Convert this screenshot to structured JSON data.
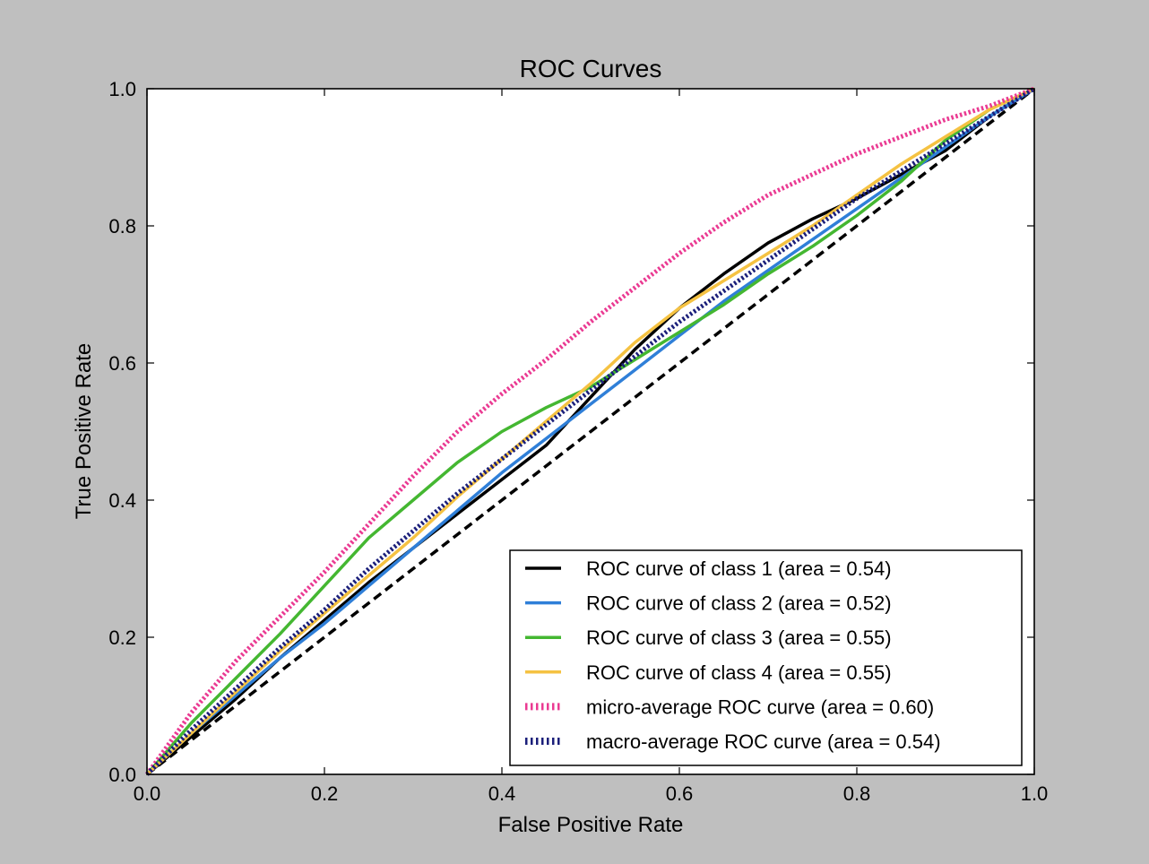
{
  "chart_data": {
    "type": "line",
    "title": "ROC Curves",
    "xlabel": "False Positive Rate",
    "ylabel": "True Positive Rate",
    "xlim": [
      0.0,
      1.0
    ],
    "ylim": [
      0.0,
      1.0
    ],
    "xticks": [
      "0.0",
      "0.2",
      "0.4",
      "0.6",
      "0.8",
      "1.0"
    ],
    "yticks": [
      "0.0",
      "0.2",
      "0.4",
      "0.6",
      "0.8",
      "1.0"
    ],
    "grid": false,
    "legend_position": "lower-right",
    "series": [
      {
        "name": "ROC curve of class 1 (area = 0.54)",
        "color": "#000000",
        "style": "solid",
        "x": [
          0.0,
          0.05,
          0.1,
          0.15,
          0.2,
          0.25,
          0.3,
          0.35,
          0.4,
          0.45,
          0.5,
          0.55,
          0.6,
          0.65,
          0.7,
          0.75,
          0.8,
          0.85,
          0.9,
          0.95,
          1.0
        ],
        "y": [
          0.0,
          0.055,
          0.11,
          0.17,
          0.225,
          0.28,
          0.33,
          0.38,
          0.43,
          0.48,
          0.55,
          0.62,
          0.68,
          0.73,
          0.775,
          0.81,
          0.84,
          0.875,
          0.91,
          0.96,
          1.0
        ]
      },
      {
        "name": "ROC curve of class 2 (area = 0.52)",
        "color": "#2f7fd8",
        "style": "solid",
        "x": [
          0.0,
          0.05,
          0.1,
          0.15,
          0.2,
          0.25,
          0.3,
          0.35,
          0.4,
          0.45,
          0.5,
          0.55,
          0.6,
          0.65,
          0.7,
          0.75,
          0.8,
          0.85,
          0.9,
          0.95,
          1.0
        ],
        "y": [
          0.0,
          0.06,
          0.115,
          0.17,
          0.22,
          0.275,
          0.33,
          0.385,
          0.44,
          0.49,
          0.54,
          0.59,
          0.64,
          0.69,
          0.735,
          0.78,
          0.825,
          0.87,
          0.915,
          0.96,
          1.0
        ]
      },
      {
        "name": "ROC curve of class 3 (area = 0.55)",
        "color": "#44b731",
        "style": "solid",
        "x": [
          0.0,
          0.05,
          0.1,
          0.15,
          0.2,
          0.25,
          0.3,
          0.35,
          0.4,
          0.45,
          0.5,
          0.55,
          0.6,
          0.65,
          0.7,
          0.75,
          0.8,
          0.85,
          0.9,
          0.95,
          1.0
        ],
        "y": [
          0.0,
          0.075,
          0.14,
          0.205,
          0.275,
          0.345,
          0.4,
          0.455,
          0.5,
          0.535,
          0.565,
          0.605,
          0.645,
          0.685,
          0.73,
          0.77,
          0.815,
          0.865,
          0.925,
          0.97,
          1.0
        ]
      },
      {
        "name": "ROC curve of class 4 (area = 0.55)",
        "color": "#f5c242",
        "style": "solid",
        "x": [
          0.0,
          0.05,
          0.1,
          0.15,
          0.2,
          0.25,
          0.3,
          0.35,
          0.4,
          0.45,
          0.5,
          0.55,
          0.6,
          0.65,
          0.7,
          0.75,
          0.8,
          0.85,
          0.9,
          0.95,
          1.0
        ],
        "y": [
          0.0,
          0.06,
          0.12,
          0.18,
          0.235,
          0.29,
          0.345,
          0.405,
          0.46,
          0.515,
          0.57,
          0.63,
          0.68,
          0.72,
          0.76,
          0.8,
          0.845,
          0.89,
          0.93,
          0.97,
          1.0
        ]
      },
      {
        "name": "micro-average ROC curve (area = 0.60)",
        "color": "#ea3a92",
        "style": "dotted",
        "x": [
          0.0,
          0.05,
          0.1,
          0.15,
          0.2,
          0.25,
          0.3,
          0.35,
          0.4,
          0.45,
          0.5,
          0.55,
          0.6,
          0.65,
          0.7,
          0.75,
          0.8,
          0.85,
          0.9,
          0.95,
          1.0
        ],
        "y": [
          0.0,
          0.09,
          0.165,
          0.23,
          0.295,
          0.365,
          0.435,
          0.5,
          0.555,
          0.605,
          0.66,
          0.71,
          0.76,
          0.805,
          0.845,
          0.875,
          0.905,
          0.93,
          0.955,
          0.975,
          1.0
        ]
      },
      {
        "name": "macro-average ROC curve (area = 0.54)",
        "color": "#1b1f7a",
        "style": "dotted",
        "x": [
          0.0,
          0.05,
          0.1,
          0.15,
          0.2,
          0.25,
          0.3,
          0.35,
          0.4,
          0.45,
          0.5,
          0.55,
          0.6,
          0.65,
          0.7,
          0.75,
          0.8,
          0.85,
          0.9,
          0.95,
          1.0
        ],
        "y": [
          0.0,
          0.065,
          0.125,
          0.185,
          0.24,
          0.3,
          0.355,
          0.41,
          0.46,
          0.51,
          0.56,
          0.61,
          0.66,
          0.705,
          0.75,
          0.795,
          0.84,
          0.88,
          0.92,
          0.96,
          1.0
        ]
      }
    ],
    "reference_line": {
      "color": "#000000",
      "style": "dashed",
      "x": [
        0.0,
        1.0
      ],
      "y": [
        0.0,
        1.0
      ]
    }
  }
}
